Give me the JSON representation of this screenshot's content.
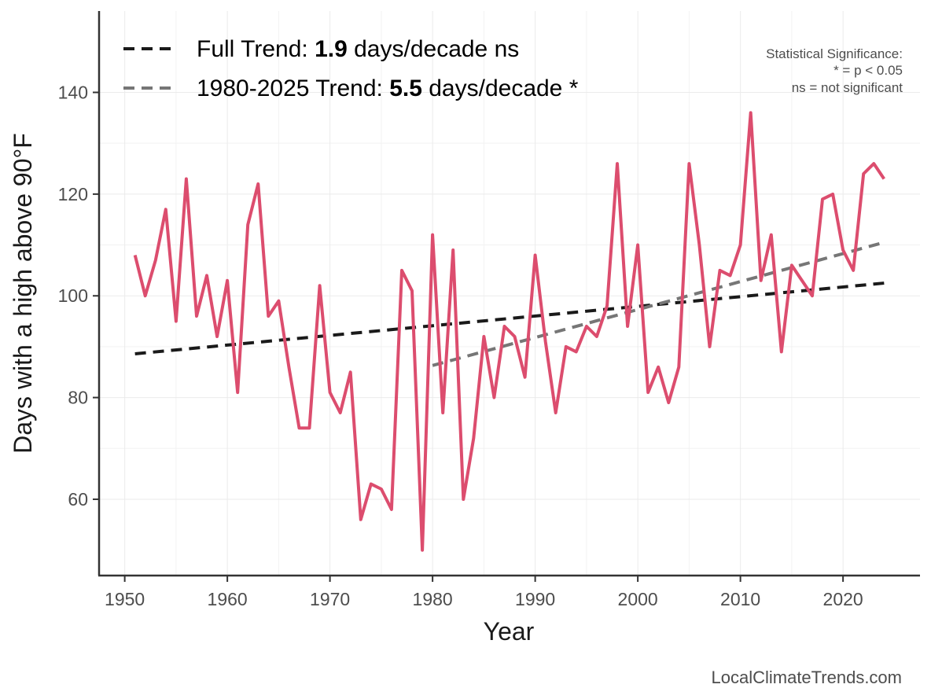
{
  "chart_data": {
    "type": "line",
    "xlabel": "Year",
    "ylabel": "Days with a high above 90°F",
    "xlim": [
      1947.5,
      2027.5
    ],
    "ylim": [
      45,
      156
    ],
    "x_ticks": [
      1950,
      1960,
      1970,
      1980,
      1990,
      2000,
      2010,
      2020
    ],
    "y_ticks": [
      60,
      80,
      100,
      120,
      140
    ],
    "grid": true,
    "legend_position": "top-left",
    "series": [
      {
        "color": "#dc4d6e",
        "x": [
          1951,
          1952,
          1953,
          1954,
          1955,
          1956,
          1957,
          1958,
          1959,
          1960,
          1961,
          1962,
          1963,
          1964,
          1965,
          1966,
          1967,
          1968,
          1969,
          1970,
          1971,
          1972,
          1973,
          1974,
          1975,
          1976,
          1977,
          1978,
          1979,
          1980,
          1981,
          1982,
          1983,
          1984,
          1985,
          1986,
          1987,
          1988,
          1989,
          1990,
          1991,
          1992,
          1993,
          1994,
          1995,
          1996,
          1997,
          1998,
          1999,
          2000,
          2001,
          2002,
          2003,
          2004,
          2005,
          2006,
          2007,
          2008,
          2009,
          2010,
          2011,
          2012,
          2013,
          2014,
          2015,
          2016,
          2017,
          2018,
          2019,
          2020,
          2021,
          2022,
          2023,
          2024
        ],
        "y": [
          108,
          100,
          107,
          117,
          95,
          123,
          96,
          104,
          92,
          103,
          81,
          114,
          122,
          96,
          99,
          86,
          74,
          74,
          102,
          81,
          77,
          85,
          56,
          63,
          62,
          58,
          105,
          101,
          50,
          112,
          77,
          109,
          60,
          72,
          92,
          80,
          94,
          92,
          84,
          108,
          91,
          77,
          90,
          89,
          94,
          92,
          98,
          126,
          94,
          110,
          81,
          86,
          79,
          86,
          126,
          110,
          90,
          105,
          104,
          110,
          136,
          103,
          112,
          89,
          106,
          103,
          100,
          119,
          120,
          109,
          105,
          124,
          126,
          123
        ]
      }
    ],
    "trend_lines": [
      {
        "label_prefix": "Full Trend: ",
        "label_value": "1.9",
        "label_suffix": " days/decade ns",
        "color": "#1a1a1a",
        "x": [
          1951,
          2024
        ],
        "y": [
          88.6,
          102.5
        ]
      },
      {
        "label_prefix": "1980-2025 Trend: ",
        "label_value": "5.5",
        "label_suffix": " days/decade *",
        "color": "#767676",
        "x": [
          1980,
          2024
        ],
        "y": [
          86.3,
          110.5
        ]
      }
    ],
    "significance_note": [
      "Statistical Significance:",
      "* = p < 0.05",
      "ns = not significant"
    ],
    "credit": "LocalClimateTrends.com"
  }
}
